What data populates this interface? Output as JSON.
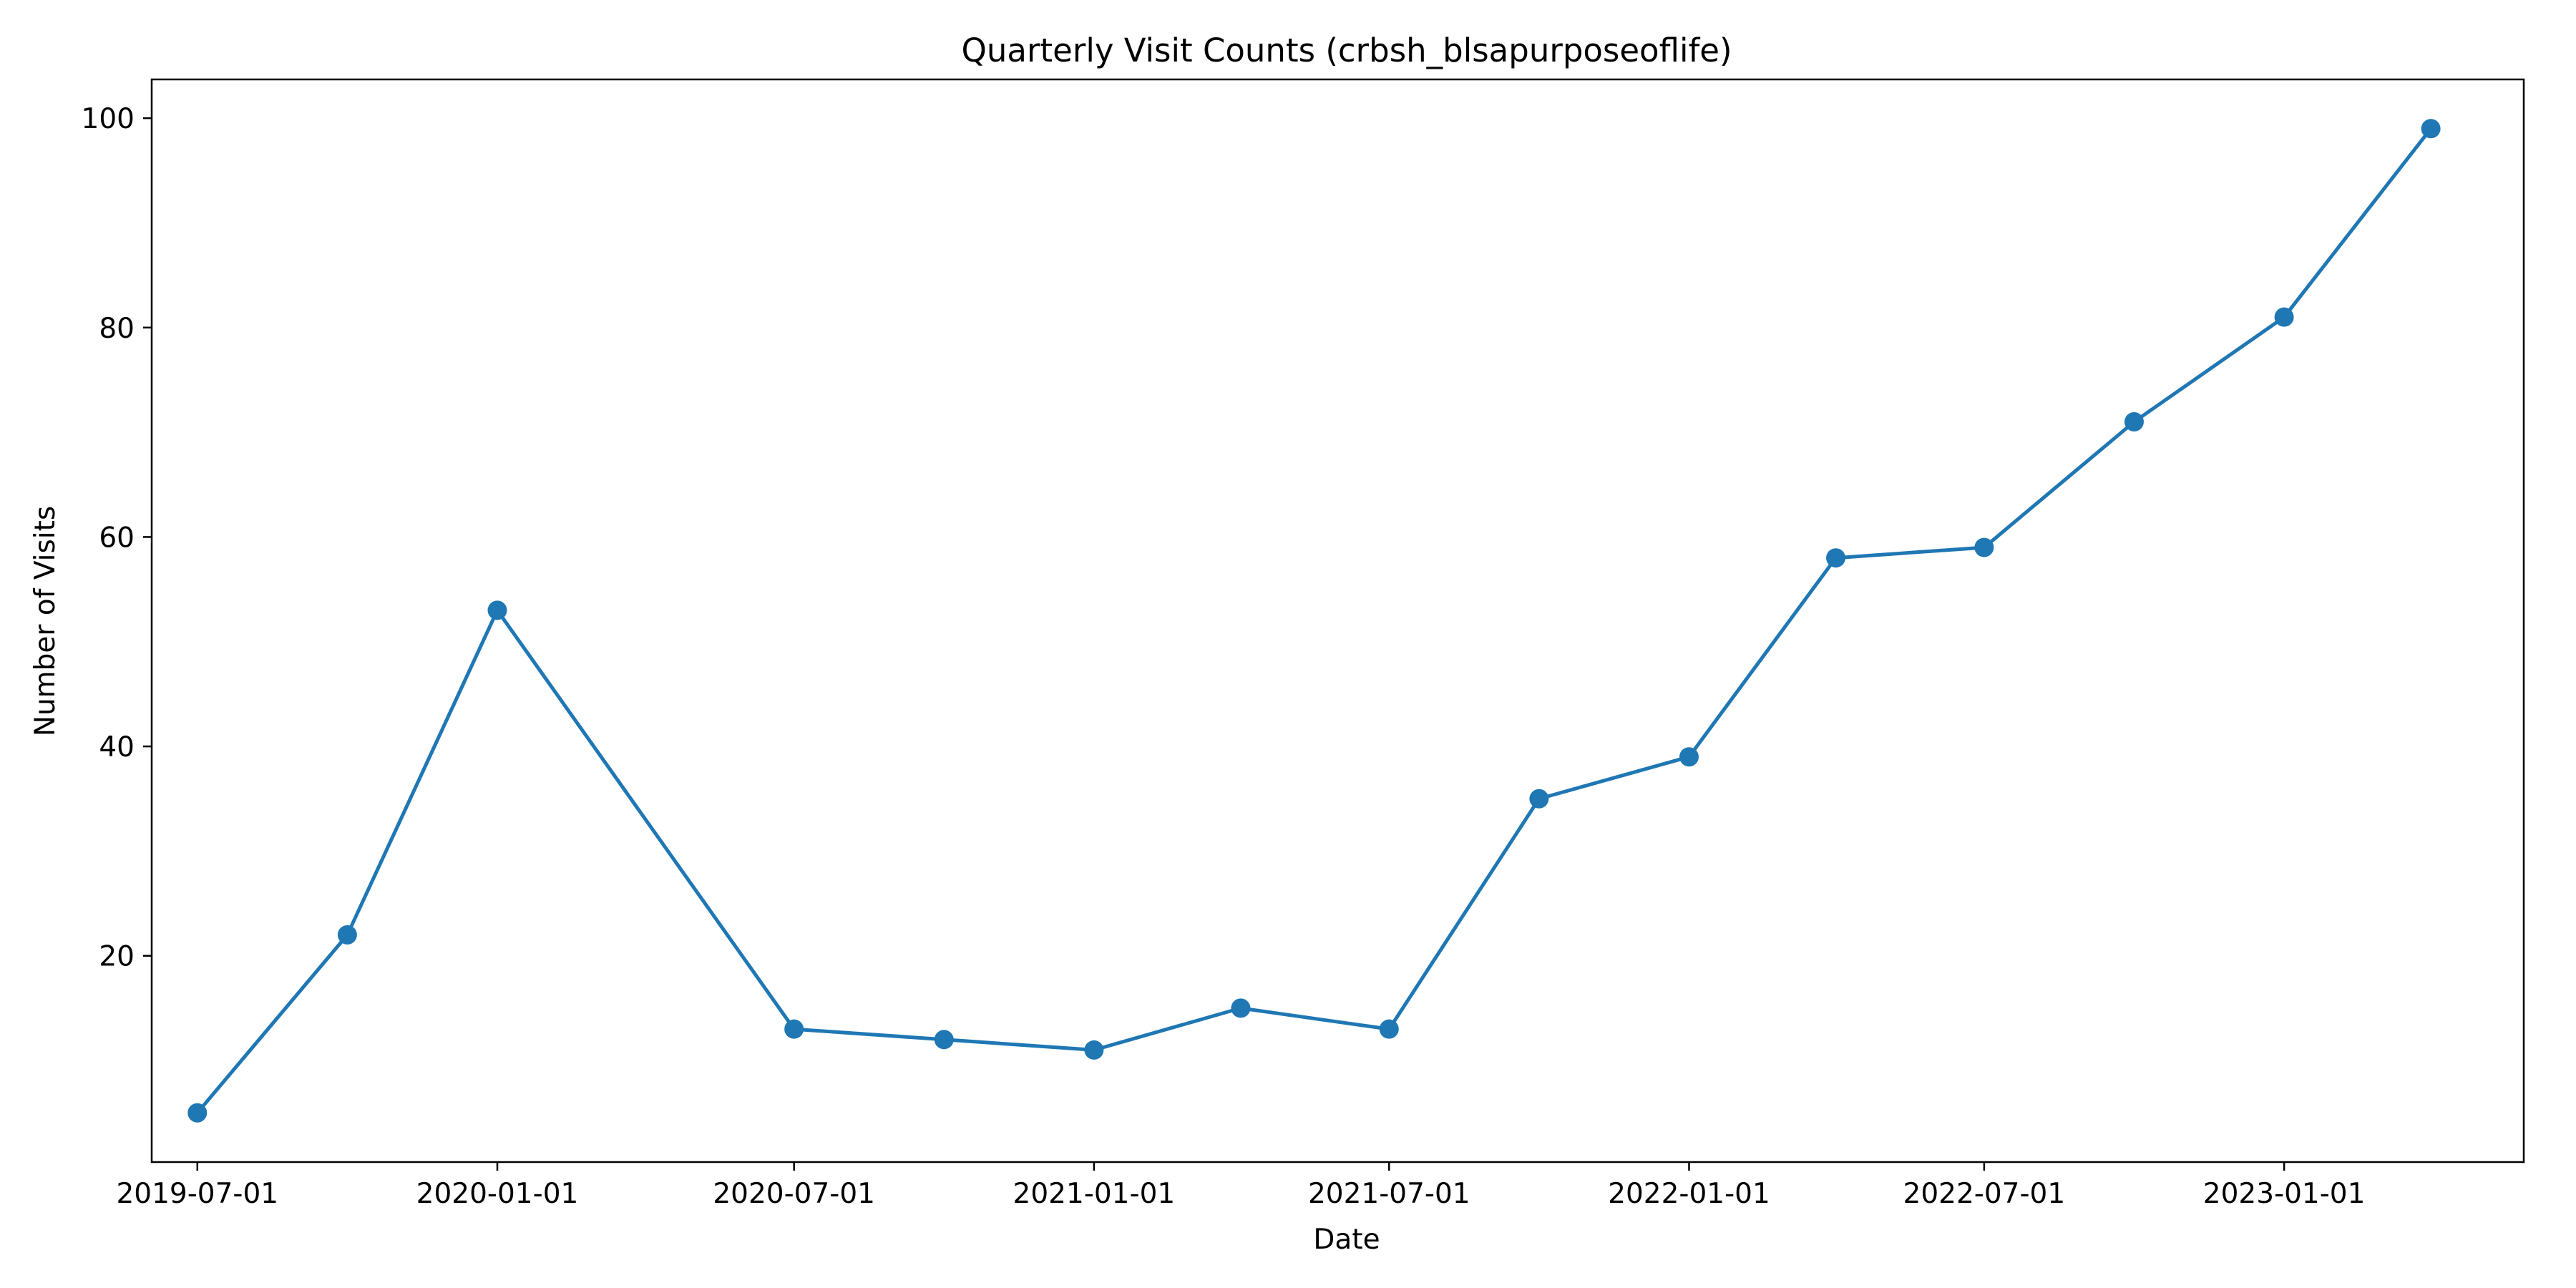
{
  "chart_data": {
    "type": "line",
    "title": "Quarterly Visit Counts (crbsh_blsapurposeoflife)",
    "xlabel": "Date",
    "ylabel": "Number of Visits",
    "x_ticks": [
      "2019-07-01",
      "2020-01-01",
      "2020-07-01",
      "2021-01-01",
      "2021-07-01",
      "2022-01-01",
      "2022-07-01",
      "2023-01-01"
    ],
    "y_ticks": [
      20,
      40,
      60,
      80,
      100
    ],
    "ylim": [
      0.3,
      103.7
    ],
    "xlim": [
      "2019-06-03",
      "2023-05-28"
    ],
    "grid": false,
    "colors": {
      "series": "#1f77b4",
      "axes": "#000000",
      "background": "#ffffff"
    },
    "series": [
      {
        "x": [
          "2019-07-01",
          "2019-10-01",
          "2020-01-01",
          "2020-07-01",
          "2020-10-01",
          "2021-01-01",
          "2021-04-01",
          "2021-07-01",
          "2021-10-01",
          "2022-01-01",
          "2022-04-01",
          "2022-07-01",
          "2022-10-01",
          "2023-01-01",
          "2023-04-01"
        ],
        "values": [
          5,
          22,
          53,
          13,
          12,
          11,
          15,
          13,
          35,
          39,
          58,
          59,
          71,
          81,
          99
        ]
      }
    ]
  }
}
